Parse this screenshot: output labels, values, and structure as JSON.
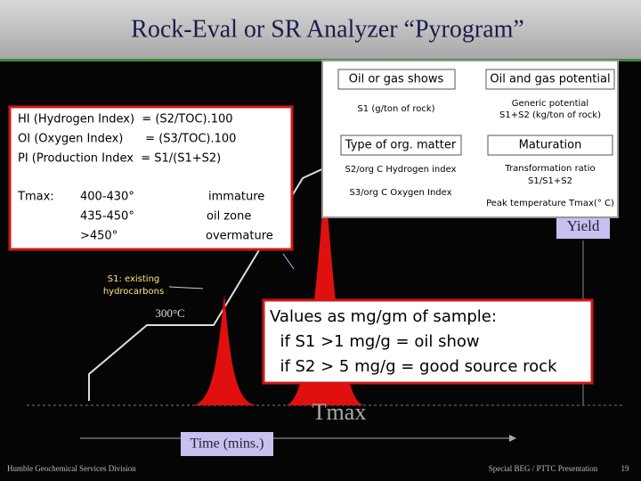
{
  "header": {
    "title": "Rock-Eval or SR Analyzer “Pyrogram”"
  },
  "indices_box": {
    "lines": [
      "HI (Hydrogen Index)  = (S2/TOC).100",
      "OI (Oxygen Index)      = (S3/TOC).100",
      "PI (Production Index  = S1/(S1+S2)"
    ],
    "tmax_label": "Tmax:",
    "tmax_rows": [
      [
        "400-430°",
        "immature"
      ],
      [
        "435-450°",
        "oil zone"
      ],
      [
        ">450°",
        "overmature"
      ]
    ]
  },
  "inset": {
    "cells": [
      {
        "heading": "Oil or gas shows",
        "lines": [
          "S1 (g/ton of rock)"
        ]
      },
      {
        "heading": "Oil and gas potential",
        "lines": [
          "Generic potential",
          "S1+S2 (kg/ton of rock)"
        ]
      },
      {
        "heading": "Type of org. matter",
        "lines": [
          "S2/org C Hydrogen index",
          "S3/org C Oxygen Index"
        ]
      },
      {
        "heading": "Maturation",
        "lines": [
          "Transformation ratio",
          "S1/S1+S2",
          "Peak temperature Tmax(° C)"
        ]
      }
    ]
  },
  "graph_labels": {
    "s1": [
      "S1: existing",
      "hydrocarbons"
    ],
    "temperature": "300°C",
    "yield": "Yield",
    "tmax": "Tmax",
    "time": "Time (mins.)"
  },
  "callout": {
    "lines": [
      "Values as mg/gm of sample:",
      "  if S1 >1 mg/g = oil show",
      "  if S2 > 5 mg/g = good source rock"
    ]
  },
  "footer": {
    "left": "Humble Geochemical Services Division",
    "right": "Special BEG / PTTC Presentation",
    "page": "19"
  }
}
